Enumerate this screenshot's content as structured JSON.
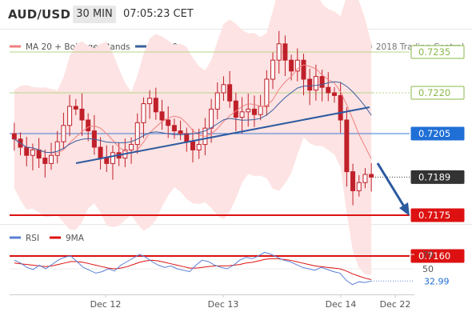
{
  "header": {
    "symbol": "AUD/USD",
    "timeframe": "30 MIN",
    "time": "07:05:23 CET"
  },
  "legend": {
    "ma20_label": "MA 20 + Bollinger Bands",
    "ma50_label": "MA 50",
    "copyright": "Research © 2018 Trading Central",
    "rsi_label": "RSI",
    "rsi_ma_label": "9MA"
  },
  "colors": {
    "ma20": "#f08080",
    "ma50": "#3a5f9e",
    "bands_fill": "#fde3e3",
    "candle": "#c0202a",
    "target_line": "#dd1111",
    "pivot_line": "#3a7bd5",
    "resistance_line": "#b8d68a",
    "trendline": "#2c5aa0",
    "label_green": "#8ab94a",
    "label_blue": "#1f6fd6",
    "label_dark": "#333333",
    "label_red": "#dd1111",
    "rsi": "#5b7fd6",
    "rsi_ma": "#dd1111"
  },
  "chart_data": [
    {
      "type": "candlestick",
      "price_levels": [
        {
          "value": 0.7235,
          "label": "0.7235",
          "role": "resistance"
        },
        {
          "value": 0.722,
          "label": "0.7220",
          "role": "resistance"
        },
        {
          "value": 0.7205,
          "label": "0.7205",
          "role": "pivot"
        },
        {
          "value": 0.7189,
          "label": "0.7189",
          "role": "last"
        },
        {
          "value": 0.7175,
          "label": "0.7175",
          "role": "target"
        },
        {
          "value": 0.716,
          "label": "0.7160",
          "role": "target"
        }
      ],
      "x_ticks": [
        "Dec 12",
        "Dec 13",
        "Dec 14",
        "Dec 22"
      ],
      "closes": [
        0.7203,
        0.72,
        0.7197,
        0.7199,
        0.7196,
        0.7194,
        0.7197,
        0.7202,
        0.7208,
        0.7215,
        0.7214,
        0.721,
        0.7206,
        0.72,
        0.7196,
        0.7194,
        0.7198,
        0.7196,
        0.7199,
        0.7201,
        0.7209,
        0.7216,
        0.7218,
        0.7213,
        0.721,
        0.7208,
        0.7206,
        0.7205,
        0.7202,
        0.7199,
        0.7201,
        0.7207,
        0.7214,
        0.722,
        0.7223,
        0.7217,
        0.7211,
        0.7213,
        0.7214,
        0.7212,
        0.7215,
        0.7225,
        0.7232,
        0.7238,
        0.7232,
        0.7228,
        0.7232,
        0.7225,
        0.7221,
        0.7226,
        0.7222,
        0.722,
        0.7219,
        0.721,
        0.7191,
        0.7184,
        0.7187,
        0.719,
        0.7189
      ],
      "ma20_approx": "smoothed close series",
      "ylim": [
        0.7155,
        0.7245
      ]
    },
    {
      "type": "line",
      "name": "RSI",
      "ticks": [
        70,
        50
      ],
      "last_value": "32.99",
      "ylim": [
        20,
        80
      ],
      "rsi": [
        62,
        58,
        52,
        49,
        55,
        50,
        56,
        62,
        66,
        68,
        60,
        52,
        48,
        44,
        46,
        50,
        47,
        55,
        60,
        65,
        70,
        66,
        60,
        55,
        52,
        54,
        50,
        48,
        46,
        55,
        62,
        60,
        55,
        52,
        50,
        55,
        62,
        66,
        64,
        68,
        73,
        70,
        66,
        62,
        60,
        56,
        52,
        50,
        48,
        52,
        49,
        46,
        44,
        34,
        28,
        32,
        31,
        33
      ],
      "ma9": [
        58,
        57,
        56,
        55,
        54,
        53,
        54,
        56,
        58,
        60,
        60,
        59,
        57,
        55,
        53,
        51,
        50,
        51,
        53,
        56,
        59,
        61,
        62,
        61,
        59,
        57,
        55,
        53,
        51,
        51,
        52,
        53,
        54,
        54,
        54,
        55,
        56,
        58,
        59,
        61,
        63,
        64,
        64,
        63,
        62,
        60,
        58,
        56,
        54,
        53,
        52,
        51,
        50,
        47,
        43,
        40,
        37,
        35
      ]
    }
  ]
}
